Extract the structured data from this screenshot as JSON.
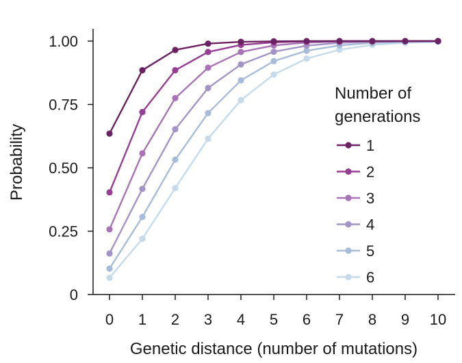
{
  "chart_data": {
    "type": "line",
    "title": "",
    "xlabel": "Genetic distance (number of mutations)",
    "ylabel": "Probability",
    "x": [
      0,
      1,
      2,
      3,
      4,
      5,
      6,
      7,
      8,
      9,
      10
    ],
    "xlim": [
      0,
      10
    ],
    "ylim": [
      0,
      1
    ],
    "xticks": [
      "0",
      "1",
      "2",
      "3",
      "4",
      "5",
      "6",
      "7",
      "8",
      "9",
      "10"
    ],
    "yticks": [
      "0",
      "0.25",
      "0.50",
      "0.75",
      "1.00"
    ],
    "ytick_values": [
      0,
      0.25,
      0.5,
      0.75,
      1.0
    ],
    "grid": false,
    "legend": {
      "title_lines": [
        "Number of",
        "generations"
      ],
      "placement": "right"
    },
    "series": [
      {
        "name": "1",
        "color": "#6b2262",
        "values": [
          0.635,
          0.885,
          0.965,
          0.99,
          0.997,
          0.999,
          1.0,
          1.0,
          1.0,
          1.0,
          1.0
        ]
      },
      {
        "name": "2",
        "color": "#973d93",
        "values": [
          0.403,
          0.72,
          0.885,
          0.957,
          0.985,
          0.995,
          0.999,
          1.0,
          1.0,
          1.0,
          1.0
        ]
      },
      {
        "name": "3",
        "color": "#a874b5",
        "values": [
          0.257,
          0.557,
          0.775,
          0.895,
          0.957,
          0.983,
          0.994,
          0.998,
          0.999,
          1.0,
          1.0
        ]
      },
      {
        "name": "4",
        "color": "#a294c5",
        "values": [
          0.162,
          0.417,
          0.652,
          0.815,
          0.908,
          0.958,
          0.982,
          0.993,
          0.997,
          0.999,
          1.0
        ]
      },
      {
        "name": "5",
        "color": "#a8bcd9",
        "values": [
          0.102,
          0.306,
          0.532,
          0.716,
          0.845,
          0.921,
          0.962,
          0.983,
          0.993,
          0.997,
          0.999
        ]
      },
      {
        "name": "6",
        "color": "#c6dae9",
        "values": [
          0.066,
          0.22,
          0.42,
          0.615,
          0.767,
          0.868,
          0.931,
          0.966,
          0.985,
          0.993,
          0.997
        ]
      }
    ]
  }
}
